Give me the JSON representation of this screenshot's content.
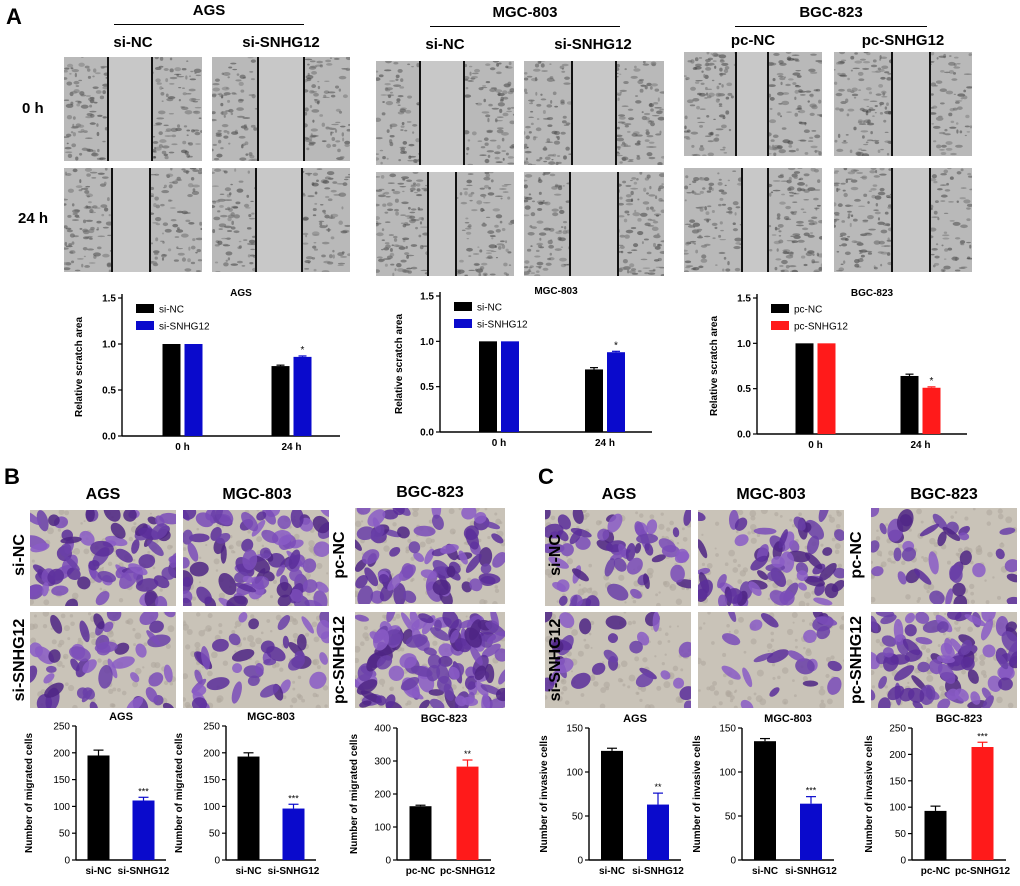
{
  "panel_labels": {
    "a": "A",
    "b": "B",
    "c": "C"
  },
  "panel_a": {
    "groups": [
      {
        "title": "AGS",
        "columns": [
          "si-NC",
          "si-SNHG12"
        ]
      },
      {
        "title": "MGC-803",
        "columns": [
          "si-NC",
          "si-SNHG12"
        ]
      },
      {
        "title": "BGC-823",
        "columns": [
          "pc-NC",
          "pc-SNHG12"
        ]
      }
    ],
    "rows": [
      "0 h",
      "24 h"
    ]
  },
  "panel_b": {
    "titles": [
      "AGS",
      "MGC-803",
      "BGC-823"
    ],
    "row_labels_si": [
      "si-NC",
      "si-SNHG12"
    ],
    "row_labels_pc": [
      "pc-NC",
      "pc-SNHG12"
    ]
  },
  "panel_c": {
    "titles": [
      "AGS",
      "MGC-803",
      "BGC-823"
    ],
    "row_labels_si": [
      "si-NC",
      "si-SNHG12"
    ],
    "row_labels_pc": [
      "pc-NC",
      "pc-SNHG12"
    ]
  },
  "colors": {
    "black": "#000000",
    "blue": "#0a0acc",
    "red": "#ff1a1a"
  },
  "chart_data": [
    {
      "id": "a-ags",
      "type": "bar",
      "title": "AGS",
      "ylabel": "Relative scratch area",
      "categories": [
        "0 h",
        "24 h"
      ],
      "ylim": [
        0,
        1.5
      ],
      "yticks": [
        "0.0",
        "0.5",
        "1.0",
        "1.5"
      ],
      "series": [
        {
          "name": "si-NC",
          "color": "#000000",
          "values": [
            1.0,
            0.76
          ],
          "errors": [
            0,
            0.01
          ]
        },
        {
          "name": "si-SNHG12",
          "color": "#0a0acc",
          "values": [
            1.0,
            0.86
          ],
          "errors": [
            0,
            0.01
          ]
        }
      ],
      "annotations": [
        "",
        "*"
      ]
    },
    {
      "id": "a-mgc",
      "type": "bar",
      "title": "MGC-803",
      "ylabel": "Relative scratch area",
      "categories": [
        "0 h",
        "24 h"
      ],
      "ylim": [
        0,
        1.5
      ],
      "yticks": [
        "0.0",
        "0.5",
        "1.0",
        "1.5"
      ],
      "series": [
        {
          "name": "si-NC",
          "color": "#000000",
          "values": [
            1.0,
            0.69
          ],
          "errors": [
            0,
            0.02
          ]
        },
        {
          "name": "si-SNHG12",
          "color": "#0a0acc",
          "values": [
            1.0,
            0.88
          ],
          "errors": [
            0,
            0.01
          ]
        }
      ],
      "annotations": [
        "",
        "*"
      ]
    },
    {
      "id": "a-bgc",
      "type": "bar",
      "title": "BGC-823",
      "ylabel": "Relative scratch area",
      "categories": [
        "0 h",
        "24 h"
      ],
      "ylim": [
        0,
        1.5
      ],
      "yticks": [
        "0.0",
        "0.5",
        "1.0",
        "1.5"
      ],
      "series": [
        {
          "name": "pc-NC",
          "color": "#000000",
          "values": [
            1.0,
            0.64
          ],
          "errors": [
            0,
            0.02
          ]
        },
        {
          "name": "pc-SNHG12",
          "color": "#ff1a1a",
          "values": [
            1.0,
            0.51
          ],
          "errors": [
            0,
            0.01
          ]
        }
      ],
      "annotations": [
        "",
        "*"
      ]
    },
    {
      "id": "b-ags",
      "type": "bar",
      "title": "AGS",
      "ylabel": "Number of migrated cells",
      "categories": [
        "si-NC",
        "si-SNHG12"
      ],
      "ylim": [
        0,
        250
      ],
      "yticks": [
        "0",
        "50",
        "100",
        "150",
        "200",
        "250"
      ],
      "values": [
        195,
        111
      ],
      "errors": [
        10,
        6
      ],
      "colors": [
        "#000000",
        "#0a0acc"
      ],
      "annotations": [
        "",
        "***"
      ]
    },
    {
      "id": "b-mgc",
      "type": "bar",
      "title": "MGC-803",
      "ylabel": "Number of migrated cells",
      "categories": [
        "si-NC",
        "si-SNHG12"
      ],
      "ylim": [
        0,
        250
      ],
      "yticks": [
        "0",
        "50",
        "100",
        "150",
        "200",
        "250"
      ],
      "values": [
        193,
        96
      ],
      "errors": [
        7,
        8
      ],
      "colors": [
        "#000000",
        "#0a0acc"
      ],
      "annotations": [
        "",
        "***"
      ]
    },
    {
      "id": "b-bgc",
      "type": "bar",
      "title": "BGC-823",
      "ylabel": "Number of migrated cells",
      "categories": [
        "pc-NC",
        "pc-SNHG12"
      ],
      "ylim": [
        0,
        400
      ],
      "yticks": [
        "0",
        "100",
        "200",
        "300",
        "400"
      ],
      "values": [
        163,
        283
      ],
      "errors": [
        3,
        20
      ],
      "colors": [
        "#000000",
        "#ff1a1a"
      ],
      "annotations": [
        "",
        "**"
      ]
    },
    {
      "id": "c-ags",
      "type": "bar",
      "title": "AGS",
      "ylabel": "Number of invasive cells",
      "categories": [
        "si-NC",
        "si-SNHG12"
      ],
      "ylim": [
        0,
        150
      ],
      "yticks": [
        "0",
        "50",
        "100",
        "150"
      ],
      "values": [
        124,
        63
      ],
      "errors": [
        3,
        13
      ],
      "colors": [
        "#000000",
        "#0a0acc"
      ],
      "annotations": [
        "",
        "**"
      ]
    },
    {
      "id": "c-mgc",
      "type": "bar",
      "title": "MGC-803",
      "ylabel": "Number of invasive cells",
      "categories": [
        "si-NC",
        "si-SNHG12"
      ],
      "ylim": [
        0,
        150
      ],
      "yticks": [
        "0",
        "50",
        "100",
        "150"
      ],
      "values": [
        135,
        64
      ],
      "errors": [
        3,
        8
      ],
      "colors": [
        "#000000",
        "#0a0acc"
      ],
      "annotations": [
        "",
        "***"
      ]
    },
    {
      "id": "c-bgc",
      "type": "bar",
      "title": "BGC-823",
      "ylabel": "Number of invasive cells",
      "categories": [
        "pc-NC",
        "pc-SNHG12"
      ],
      "ylim": [
        0,
        250
      ],
      "yticks": [
        "0",
        "50",
        "100",
        "150",
        "200",
        "250"
      ],
      "values": [
        93,
        214
      ],
      "errors": [
        9,
        9
      ],
      "colors": [
        "#000000",
        "#ff1a1a"
      ],
      "annotations": [
        "",
        "***"
      ]
    }
  ]
}
